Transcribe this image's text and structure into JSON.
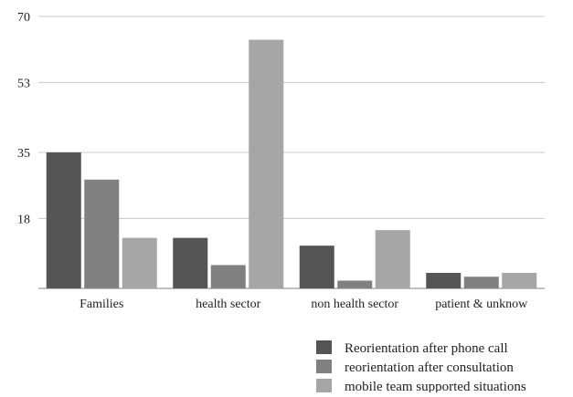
{
  "chart_data": {
    "type": "bar",
    "categories": [
      "Families",
      "health sector",
      "non health sector",
      "patient & unknow"
    ],
    "series": [
      {
        "name": "Reorientation after phone call",
        "color": "#555555",
        "values": [
          35,
          13,
          11,
          4
        ]
      },
      {
        "name": "reorientation after consultation",
        "color": "#808080",
        "values": [
          28,
          6,
          2,
          3
        ]
      },
      {
        "name": "mobile team supported situations",
        "color": "#a6a6a6",
        "values": [
          13,
          64,
          15,
          4
        ]
      }
    ],
    "y_ticks": [
      "70",
      "53",
      "35",
      "18"
    ],
    "ylim": [
      0,
      70
    ],
    "grid": true,
    "legend_position": "bottom-right",
    "axis_color": "#c8c8c8"
  }
}
